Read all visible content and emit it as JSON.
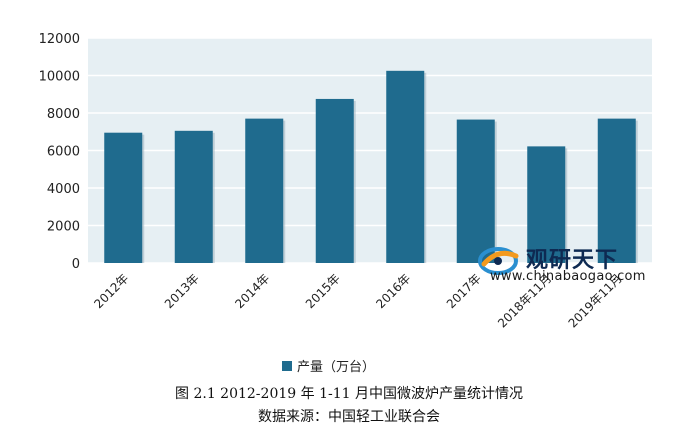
{
  "chart_data": {
    "type": "bar",
    "categories": [
      "2012年",
      "2013年",
      "2014年",
      "2015年",
      "2016年",
      "2017年",
      "2018年11月",
      "2019年11月"
    ],
    "series": [
      {
        "name": "产量（万台）",
        "values": [
          6950,
          7050,
          7700,
          8750,
          10250,
          7650,
          6220,
          7700
        ]
      }
    ],
    "ylim": [
      0,
      12000
    ],
    "yticks": [
      0,
      2000,
      4000,
      6000,
      8000,
      10000,
      12000
    ],
    "title": "",
    "xlabel": "",
    "ylabel": "",
    "grid": true,
    "legend": "bottom",
    "colors": {
      "bar": "#1f6b8e",
      "plot_bg": "#e6eff3",
      "grid": "#ffffff"
    }
  },
  "watermark": {
    "name": "观研天下",
    "url": "www.chinabaogao.com"
  },
  "caption": {
    "line1": "图 2.1 2012-2019 年 1-11 月中国微波炉产量统计情况",
    "line2": "数据来源：中国轻工业联合会"
  }
}
